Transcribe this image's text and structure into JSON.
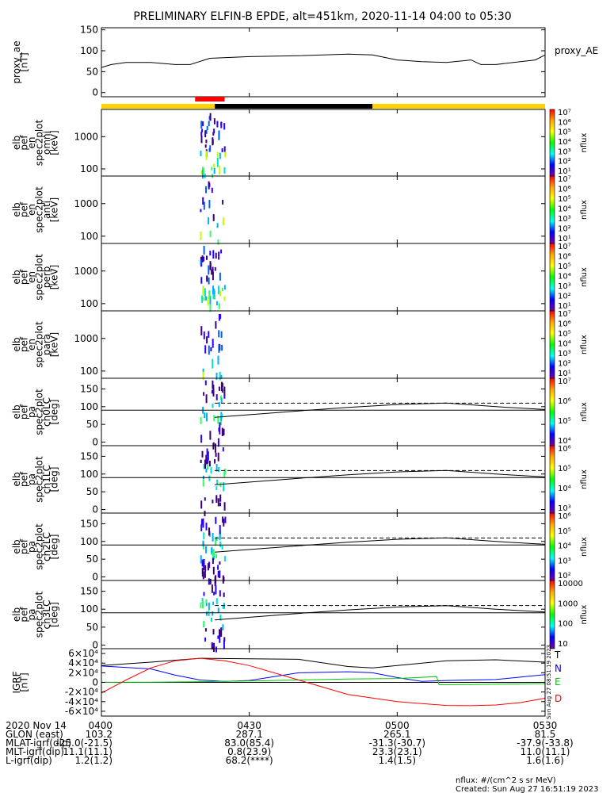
{
  "title": "PRELIMINARY ELFIN-B EPDE, alt=451km, 2020-11-14 04:00 to 05:30",
  "chart_data": {
    "type": "line",
    "title": "PRELIMINARY ELFIN-B EPDE, alt=451km, 2020-11-14 04:00 to 05:30",
    "x_range_minutes": [
      0,
      90
    ],
    "x_ticks": [
      "0400",
      "0430",
      "0500",
      "0530"
    ],
    "panels": [
      {
        "id": "proxy_ae",
        "ylabel": [
          "proxy_ae",
          "[nT]"
        ],
        "legend": "proxy_AE",
        "ylim": [
          -10,
          155
        ],
        "yticks": [
          "0",
          "50",
          "100",
          "150"
        ],
        "series": [
          {
            "name": "proxy_AE",
            "x": [
              0,
              2,
              5,
              10,
              15,
              18,
              22,
              30,
              40,
              50,
              55,
              60,
              65,
              70,
              75,
              77,
              80,
              85,
              88,
              90
            ],
            "y": [
              60,
              67,
              72,
              72,
              67,
              67,
              82,
              86,
              88,
              92,
              90,
              78,
              74,
              72,
              78,
              67,
              67,
              74,
              78,
              90
            ]
          }
        ]
      },
      {
        "id": "omni",
        "ylabel": [
          "elb",
          "pef",
          "en",
          "spec2plot",
          "omni",
          "[keV]"
        ],
        "log": true,
        "yticks": [
          "100",
          "1000"
        ],
        "ylim": [
          60,
          7000
        ],
        "colorbar": {
          "label": "nflux",
          "ticks": [
            "10¹",
            "10²",
            "10³",
            "10⁴",
            "10⁵",
            "10⁶",
            "10⁷"
          ]
        }
      },
      {
        "id": "anti",
        "ylabel": [
          "elb",
          "pef",
          "en",
          "spec2plot",
          "anti",
          "[keV]"
        ],
        "log": true,
        "yticks": [
          "100",
          "1000"
        ],
        "ylim": [
          60,
          7000
        ],
        "colorbar": {
          "label": "nflux",
          "ticks": [
            "10¹",
            "10²",
            "10³",
            "10⁴",
            "10⁵",
            "10⁶",
            "10⁷"
          ]
        }
      },
      {
        "id": "perp",
        "ylabel": [
          "elb",
          "pef",
          "en",
          "spec2plot",
          "perp",
          "[keV]"
        ],
        "log": true,
        "yticks": [
          "100",
          "1000"
        ],
        "ylim": [
          60,
          7000
        ],
        "colorbar": {
          "label": "nflux",
          "ticks": [
            "10¹",
            "10²",
            "10³",
            "10⁴",
            "10⁵",
            "10⁶",
            "10⁷"
          ]
        }
      },
      {
        "id": "para",
        "ylabel": [
          "elb",
          "pef",
          "en",
          "spec2plot",
          "para",
          "[keV]"
        ],
        "log": true,
        "yticks": [
          "100",
          "1000"
        ],
        "ylim": [
          60,
          7000
        ],
        "colorbar": {
          "label": "nflux",
          "ticks": [
            "10¹",
            "10²",
            "10³",
            "10⁴",
            "10⁵",
            "10⁶",
            "10⁷"
          ]
        }
      },
      {
        "id": "ch0lc",
        "ylabel": [
          "elb",
          "pef",
          "pa",
          "spec2plot",
          "ch0LC",
          "[deg]"
        ],
        "yticks": [
          "0",
          "50",
          "100",
          "150"
        ],
        "ylim": [
          -10,
          180
        ],
        "colorbar": {
          "label": "nflux",
          "ticks": [
            "10⁴",
            "10⁵",
            "10⁶",
            "10⁷"
          ]
        }
      },
      {
        "id": "ch1lc",
        "ylabel": [
          "elb",
          "pef",
          "pa",
          "spec2plot",
          "ch1LC",
          "[deg]"
        ],
        "yticks": [
          "0",
          "50",
          "100",
          "150"
        ],
        "ylim": [
          -10,
          180
        ],
        "colorbar": {
          "label": "nflux",
          "ticks": [
            "10³",
            "10⁴",
            "10⁵",
            "10⁶"
          ]
        }
      },
      {
        "id": "ch2lc",
        "ylabel": [
          "elb",
          "pef",
          "pa",
          "spec2plot",
          "ch2LC",
          "[deg]"
        ],
        "yticks": [
          "0",
          "50",
          "100",
          "150"
        ],
        "ylim": [
          -10,
          180
        ],
        "colorbar": {
          "label": "nflux",
          "ticks": [
            "10²",
            "10³",
            "10⁴",
            "10⁵",
            "10⁶"
          ]
        }
      },
      {
        "id": "ch3lc",
        "ylabel": [
          "elb",
          "pef",
          "pa",
          "spec2plot",
          "ch3LC",
          "[deg]"
        ],
        "yticks": [
          "0",
          "50",
          "100",
          "150"
        ],
        "ylim": [
          -10,
          180
        ],
        "colorbar": {
          "label": "nflux",
          "ticks": [
            "10",
            "100",
            "1000",
            "10000"
          ]
        }
      },
      {
        "id": "igrf",
        "ylabel": [
          "IGRF",
          "[nT]"
        ],
        "yticks": [
          "-6×10⁴",
          "-4×10⁴",
          "-2×10⁴",
          "0",
          "2×10⁴",
          "4×10⁴",
          "6×10⁴"
        ],
        "ylim": [
          -70000,
          70000
        ],
        "legend": [
          {
            "name": "T",
            "color": "#000000"
          },
          {
            "name": "N",
            "color": "#0000ff"
          },
          {
            "name": "E",
            "color": "#00cc00"
          },
          {
            "name": "D",
            "color": "#ff0000"
          }
        ],
        "series": [
          {
            "name": "T",
            "x": [
              0,
              10,
              20,
              30,
              40,
              50,
              55,
              60,
              70,
              80,
              90
            ],
            "y": [
              35000,
              42000,
              50000,
              49000,
              48000,
              33000,
              30000,
              35000,
              45000,
              47000,
              42000
            ]
          },
          {
            "name": "N",
            "x": [
              0,
              10,
              15,
              20,
              25,
              30,
              40,
              50,
              55,
              60,
              65,
              70,
              80,
              90
            ],
            "y": [
              34000,
              28000,
              15000,
              5000,
              2000,
              4000,
              20000,
              22000,
              20000,
              10000,
              2000,
              4000,
              6000,
              16000
            ]
          },
          {
            "name": "E",
            "x": [
              0,
              10,
              20,
              30,
              40,
              50,
              60,
              68,
              68.5,
              75,
              80,
              90
            ],
            "y": [
              200,
              500,
              1500,
              3000,
              5000,
              7000,
              8000,
              12000,
              -5000,
              -4500,
              -3800,
              -2500
            ]
          },
          {
            "name": "D",
            "x": [
              0,
              5,
              10,
              15,
              20,
              25,
              30,
              40,
              50,
              60,
              70,
              75,
              80,
              85,
              90
            ],
            "y": [
              -22000,
              5000,
              30000,
              45000,
              50000,
              45000,
              35000,
              5000,
              -25000,
              -40000,
              -48000,
              -48500,
              -47000,
              -42000,
              -33000
            ]
          }
        ]
      }
    ],
    "pitch_angle_lines": {
      "solid_90": 90,
      "dashed_start": 110,
      "curve": {
        "x": [
          23,
          40,
          50,
          60,
          70,
          80,
          90
        ],
        "y": [
          70,
          88,
          98,
          106,
          110,
          100,
          92
        ]
      }
    },
    "science_zone_bar": [
      {
        "from": 0,
        "to": 23,
        "color": "#ffd200"
      },
      {
        "from": 23,
        "to": 55,
        "color": "#000000"
      },
      {
        "from": 55,
        "to": 90,
        "color": "#ffd200"
      }
    ],
    "red_marker": {
      "from": 19,
      "to": 25,
      "color": "#ff0000"
    }
  },
  "colors": {
    "yellow": "#ffd200",
    "black": "#000000",
    "red": "#ff0000"
  },
  "legend_proxy": "proxy_AE",
  "cb_label": "nflux",
  "cb_ticks": [
    "10¹",
    "10²",
    "10³",
    "10⁴",
    "10⁵",
    "10⁶",
    "10⁷"
  ],
  "footer": {
    "rows": [
      {
        "label": "2020 Nov 14",
        "vals": [
          "0400",
          "0430",
          "0500",
          "0530"
        ]
      },
      {
        "label": "GLON (east)",
        "vals": [
          "103.2",
          "287.1",
          "265.1",
          "81.5"
        ]
      },
      {
        "label": "MLAT-igrf(dip)",
        "vals": [
          "-25.0(-21.5)",
          "83.0(85.4)",
          "-31.3(-30.7)",
          "-37.9(-33.8)"
        ]
      },
      {
        "label": "MLT-igrf(dip)",
        "vals": [
          "11.1(11.1)",
          "0.8(23.9)",
          "23.3(23.1)",
          "11.0(11.1)"
        ]
      },
      {
        "label": "L-igrf(dip)",
        "vals": [
          "1.2(1.2)",
          "68.2(****)",
          "1.4(1.5)",
          "1.6(1.6)"
        ]
      }
    ],
    "units": "nflux: #/(cm^2 s sr MeV)",
    "created": "Created: Sun Aug 27 16:51:19 2023",
    "side_stamp": "Sun Aug 27 08:51:19 2023"
  }
}
